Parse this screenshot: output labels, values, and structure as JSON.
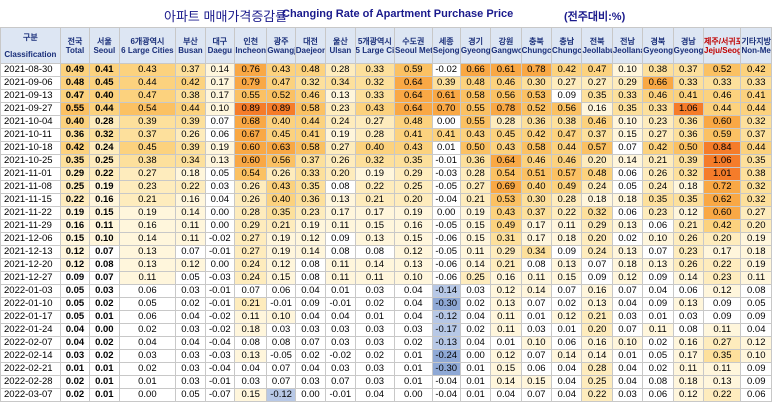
{
  "title_kr": "아파트 매매가격증감률",
  "title_en": "Changing Rate of Apartment Purchase Price",
  "unit": "(전주대비:%)",
  "header": {
    "group_label": "구분",
    "classification_label": "Classification",
    "columns": [
      {
        "kr": "전국",
        "en": "Total"
      },
      {
        "kr": "서울",
        "en": "Seoul"
      },
      {
        "kr": "6개광역시",
        "en": "6 Large Cities"
      },
      {
        "kr": "부산",
        "en": "Busan"
      },
      {
        "kr": "대구",
        "en": "Daegu"
      },
      {
        "kr": "인천",
        "en": "Incheon"
      },
      {
        "kr": "광주",
        "en": "Gwangju"
      },
      {
        "kr": "대전",
        "en": "Daejeon"
      },
      {
        "kr": "울산",
        "en": "Ulsan"
      },
      {
        "kr": "5개광역시",
        "en": "5 Large Cities"
      },
      {
        "kr": "수도권",
        "en": "Seoul Metropolitan"
      },
      {
        "kr": "세종",
        "en": "Sejong"
      },
      {
        "kr": "경기",
        "en": "Gyeonggi-do"
      },
      {
        "kr": "강원",
        "en": "Gangwon-do"
      },
      {
        "kr": "충북",
        "en": "Chungcheongbuk-do"
      },
      {
        "kr": "충남",
        "en": "Chungcheongnam-do"
      },
      {
        "kr": "전북",
        "en": "Jeollabuk-do"
      },
      {
        "kr": "전남",
        "en": "Jeollanam-do"
      },
      {
        "kr": "경북",
        "en": "Gyeongsangbuk-do"
      },
      {
        "kr": "경남",
        "en": "Gyeongsangnam-do"
      },
      {
        "kr": "제주/서귀포",
        "en": "Jeju/Seogwipo"
      },
      {
        "kr": "기타지방",
        "en": "Non-Metropolitan Area"
      }
    ]
  },
  "rows": [
    {
      "date": "2021-08-30",
      "values": [
        "0.49",
        "0.41",
        "0.43",
        "0.37",
        "0.14",
        "0.76",
        "0.43",
        "0.48",
        "0.28",
        "0.33",
        "0.59",
        "-0.02",
        "0.66",
        "0.61",
        "0.78",
        "0.42",
        "0.47",
        "0.10",
        "0.38",
        "0.37",
        "0.52",
        "0.42"
      ]
    },
    {
      "date": "2021-09-06",
      "values": [
        "0.48",
        "0.45",
        "0.44",
        "0.42",
        "0.17",
        "0.79",
        "0.47",
        "0.32",
        "0.34",
        "0.32",
        "0.64",
        "0.39",
        "0.48",
        "0.46",
        "0.30",
        "0.27",
        "0.27",
        "0.29",
        "0.66",
        "0.33",
        "0.33",
        "0.33"
      ]
    },
    {
      "date": "2021-09-13",
      "values": [
        "0.47",
        "0.40",
        "0.47",
        "0.38",
        "0.17",
        "0.55",
        "0.52",
        "0.46",
        "0.13",
        "0.33",
        "0.64",
        "0.61",
        "0.58",
        "0.56",
        "0.53",
        "0.09",
        "0.35",
        "0.33",
        "0.46",
        "0.41",
        "0.46",
        "0.41"
      ]
    },
    {
      "date": "2021-09-27",
      "values": [
        "0.55",
        "0.44",
        "0.54",
        "0.44",
        "0.10",
        "0.89",
        "0.89",
        "0.58",
        "0.23",
        "0.43",
        "0.64",
        "0.70",
        "0.55",
        "0.78",
        "0.52",
        "0.56",
        "0.16",
        "0.35",
        "0.33",
        "1.06",
        "0.44",
        "0.44"
      ]
    },
    {
      "date": "2021-10-04",
      "values": [
        "0.40",
        "0.28",
        "0.39",
        "0.39",
        "0.07",
        "0.68",
        "0.40",
        "0.44",
        "0.24",
        "0.27",
        "0.48",
        "0.00",
        "0.55",
        "0.28",
        "0.36",
        "0.38",
        "0.46",
        "0.10",
        "0.23",
        "0.36",
        "0.60",
        "0.32"
      ]
    },
    {
      "date": "2021-10-11",
      "values": [
        "0.36",
        "0.32",
        "0.37",
        "0.26",
        "0.06",
        "0.67",
        "0.45",
        "0.41",
        "0.19",
        "0.28",
        "0.41",
        "0.41",
        "0.43",
        "0.45",
        "0.42",
        "0.47",
        "0.37",
        "0.15",
        "0.27",
        "0.36",
        "0.59",
        "0.37"
      ]
    },
    {
      "date": "2021-10-18",
      "values": [
        "0.42",
        "0.24",
        "0.45",
        "0.39",
        "0.19",
        "0.60",
        "0.63",
        "0.58",
        "0.27",
        "0.40",
        "0.43",
        "0.01",
        "0.50",
        "0.43",
        "0.58",
        "0.44",
        "0.57",
        "0.07",
        "0.42",
        "0.50",
        "0.84",
        "0.44"
      ]
    },
    {
      "date": "2021-10-25",
      "values": [
        "0.35",
        "0.25",
        "0.38",
        "0.34",
        "0.13",
        "0.60",
        "0.56",
        "0.37",
        "0.26",
        "0.32",
        "0.35",
        "-0.01",
        "0.36",
        "0.64",
        "0.46",
        "0.46",
        "0.20",
        "0.14",
        "0.21",
        "0.39",
        "1.06",
        "0.35"
      ]
    },
    {
      "date": "2021-11-01",
      "values": [
        "0.29",
        "0.22",
        "0.27",
        "0.18",
        "0.05",
        "0.54",
        "0.26",
        "0.33",
        "0.20",
        "0.19",
        "0.29",
        "-0.03",
        "0.28",
        "0.54",
        "0.51",
        "0.57",
        "0.48",
        "0.06",
        "0.26",
        "0.32",
        "1.01",
        "0.38"
      ]
    },
    {
      "date": "2021-11-08",
      "values": [
        "0.25",
        "0.19",
        "0.23",
        "0.22",
        "0.03",
        "0.26",
        "0.43",
        "0.35",
        "0.08",
        "0.22",
        "0.25",
        "-0.05",
        "0.27",
        "0.69",
        "0.40",
        "0.49",
        "0.24",
        "0.05",
        "0.24",
        "0.18",
        "0.72",
        "0.32"
      ]
    },
    {
      "date": "2021-11-15",
      "values": [
        "0.22",
        "0.16",
        "0.21",
        "0.16",
        "0.04",
        "0.26",
        "0.40",
        "0.36",
        "0.13",
        "0.21",
        "0.20",
        "-0.04",
        "0.21",
        "0.53",
        "0.30",
        "0.28",
        "0.18",
        "0.18",
        "0.35",
        "0.35",
        "0.62",
        "0.32"
      ]
    },
    {
      "date": "2021-11-22",
      "values": [
        "0.19",
        "0.15",
        "0.19",
        "0.14",
        "0.00",
        "0.28",
        "0.35",
        "0.23",
        "0.17",
        "0.17",
        "0.19",
        "0.00",
        "0.19",
        "0.43",
        "0.37",
        "0.22",
        "0.32",
        "0.06",
        "0.23",
        "0.12",
        "0.60",
        "0.27"
      ]
    },
    {
      "date": "2021-11-29",
      "values": [
        "0.16",
        "0.11",
        "0.16",
        "0.11",
        "0.00",
        "0.29",
        "0.21",
        "0.19",
        "0.11",
        "0.15",
        "0.16",
        "-0.05",
        "0.15",
        "0.49",
        "0.17",
        "0.11",
        "0.29",
        "0.13",
        "0.06",
        "0.21",
        "0.42",
        "0.20"
      ]
    },
    {
      "date": "2021-12-06",
      "values": [
        "0.15",
        "0.10",
        "0.14",
        "0.11",
        "-0.02",
        "0.27",
        "0.19",
        "0.12",
        "0.09",
        "0.13",
        "0.15",
        "-0.06",
        "0.15",
        "0.31",
        "0.17",
        "0.18",
        "0.20",
        "0.02",
        "0.10",
        "0.26",
        "0.20",
        "0.19"
      ]
    },
    {
      "date": "2021-12-13",
      "values": [
        "0.12",
        "0.07",
        "0.13",
        "0.07",
        "-0.01",
        "0.27",
        "0.19",
        "0.14",
        "0.08",
        "0.08",
        "0.12",
        "-0.05",
        "0.11",
        "0.29",
        "0.34",
        "0.09",
        "0.24",
        "0.13",
        "0.07",
        "0.23",
        "0.17",
        "0.18"
      ]
    },
    {
      "date": "2021-12-20",
      "values": [
        "0.12",
        "0.08",
        "0.13",
        "0.12",
        "0.00",
        "0.24",
        "0.12",
        "0.08",
        "0.11",
        "0.14",
        "0.13",
        "-0.06",
        "0.14",
        "0.21",
        "0.08",
        "0.13",
        "0.07",
        "0.18",
        "0.13",
        "0.26",
        "0.22",
        "0.19"
      ]
    },
    {
      "date": "2021-12-27",
      "values": [
        "0.09",
        "0.07",
        "0.11",
        "0.05",
        "-0.03",
        "0.24",
        "0.15",
        "0.08",
        "0.11",
        "0.11",
        "0.10",
        "-0.06",
        "0.25",
        "0.16",
        "0.11",
        "0.15",
        "0.09",
        "0.12",
        "0.09",
        "0.14",
        "0.23",
        "0.11"
      ]
    },
    {
      "date": "2022-01-03",
      "values": [
        "0.05",
        "0.03",
        "0.06",
        "0.03",
        "-0.01",
        "0.07",
        "0.06",
        "0.04",
        "0.01",
        "0.03",
        "0.04",
        "-0.14",
        "0.03",
        "0.12",
        "0.14",
        "0.07",
        "0.16",
        "0.07",
        "0.04",
        "0.06",
        "0.12",
        "0.08"
      ]
    },
    {
      "date": "2022-01-10",
      "values": [
        "0.05",
        "0.02",
        "0.05",
        "0.02",
        "-0.01",
        "0.21",
        "-0.01",
        "0.09",
        "-0.01",
        "0.02",
        "0.04",
        "-0.30",
        "0.02",
        "0.13",
        "0.07",
        "0.02",
        "0.13",
        "0.04",
        "0.09",
        "0.13",
        "0.09",
        "0.05"
      ]
    },
    {
      "date": "2022-01-17",
      "values": [
        "0.05",
        "0.01",
        "0.06",
        "0.04",
        "-0.02",
        "0.11",
        "0.10",
        "0.04",
        "0.04",
        "0.01",
        "0.04",
        "-0.12",
        "0.04",
        "0.11",
        "0.01",
        "0.12",
        "0.21",
        "0.03",
        "0.01",
        "0.03",
        "0.09",
        "0.09"
      ]
    },
    {
      "date": "2022-01-24",
      "values": [
        "0.04",
        "0.00",
        "0.02",
        "0.03",
        "-0.02",
        "0.18",
        "0.03",
        "0.03",
        "0.03",
        "0.03",
        "0.03",
        "-0.17",
        "0.02",
        "0.11",
        "0.03",
        "0.01",
        "0.20",
        "0.07",
        "0.11",
        "0.08",
        "0.11",
        "0.04"
      ]
    },
    {
      "date": "2022-02-07",
      "values": [
        "0.04",
        "0.02",
        "0.04",
        "0.04",
        "-0.04",
        "0.08",
        "0.08",
        "0.07",
        "0.03",
        "0.03",
        "0.02",
        "-0.13",
        "0.04",
        "0.01",
        "0.10",
        "0.06",
        "0.16",
        "0.10",
        "0.02",
        "0.16",
        "0.27",
        "0.12"
      ]
    },
    {
      "date": "2022-02-14",
      "values": [
        "0.03",
        "0.02",
        "0.03",
        "0.03",
        "-0.03",
        "0.13",
        "-0.05",
        "0.02",
        "-0.02",
        "0.02",
        "0.01",
        "-0.24",
        "0.00",
        "0.12",
        "0.07",
        "0.14",
        "0.14",
        "0.01",
        "0.05",
        "0.17",
        "0.35",
        "0.10"
      ]
    },
    {
      "date": "2022-02-21",
      "values": [
        "0.01",
        "0.01",
        "0.02",
        "0.03",
        "-0.04",
        "0.04",
        "0.07",
        "0.04",
        "0.03",
        "0.03",
        "0.01",
        "-0.30",
        "0.01",
        "0.15",
        "0.06",
        "0.04",
        "0.28",
        "0.04",
        "0.02",
        "0.11",
        "0.11",
        "0.09"
      ]
    },
    {
      "date": "2022-02-28",
      "values": [
        "0.02",
        "0.01",
        "0.01",
        "0.03",
        "-0.01",
        "0.03",
        "0.07",
        "0.03",
        "0.07",
        "0.03",
        "0.01",
        "-0.04",
        "0.01",
        "0.14",
        "0.15",
        "0.04",
        "0.25",
        "0.04",
        "0.08",
        "0.18",
        "0.13",
        "0.09"
      ]
    },
    {
      "date": "2022-03-07",
      "values": [
        "0.02",
        "0.01",
        "0.00",
        "0.05",
        "-0.07",
        "0.15",
        "-0.12",
        "0.00",
        "-0.01",
        "0.04",
        "0.00",
        "-0.04",
        "0.01",
        "0.04",
        "0.07",
        "0.04",
        "0.22",
        "0.03",
        "0.06",
        "0.12",
        "0.22",
        "0.06"
      ]
    }
  ]
}
